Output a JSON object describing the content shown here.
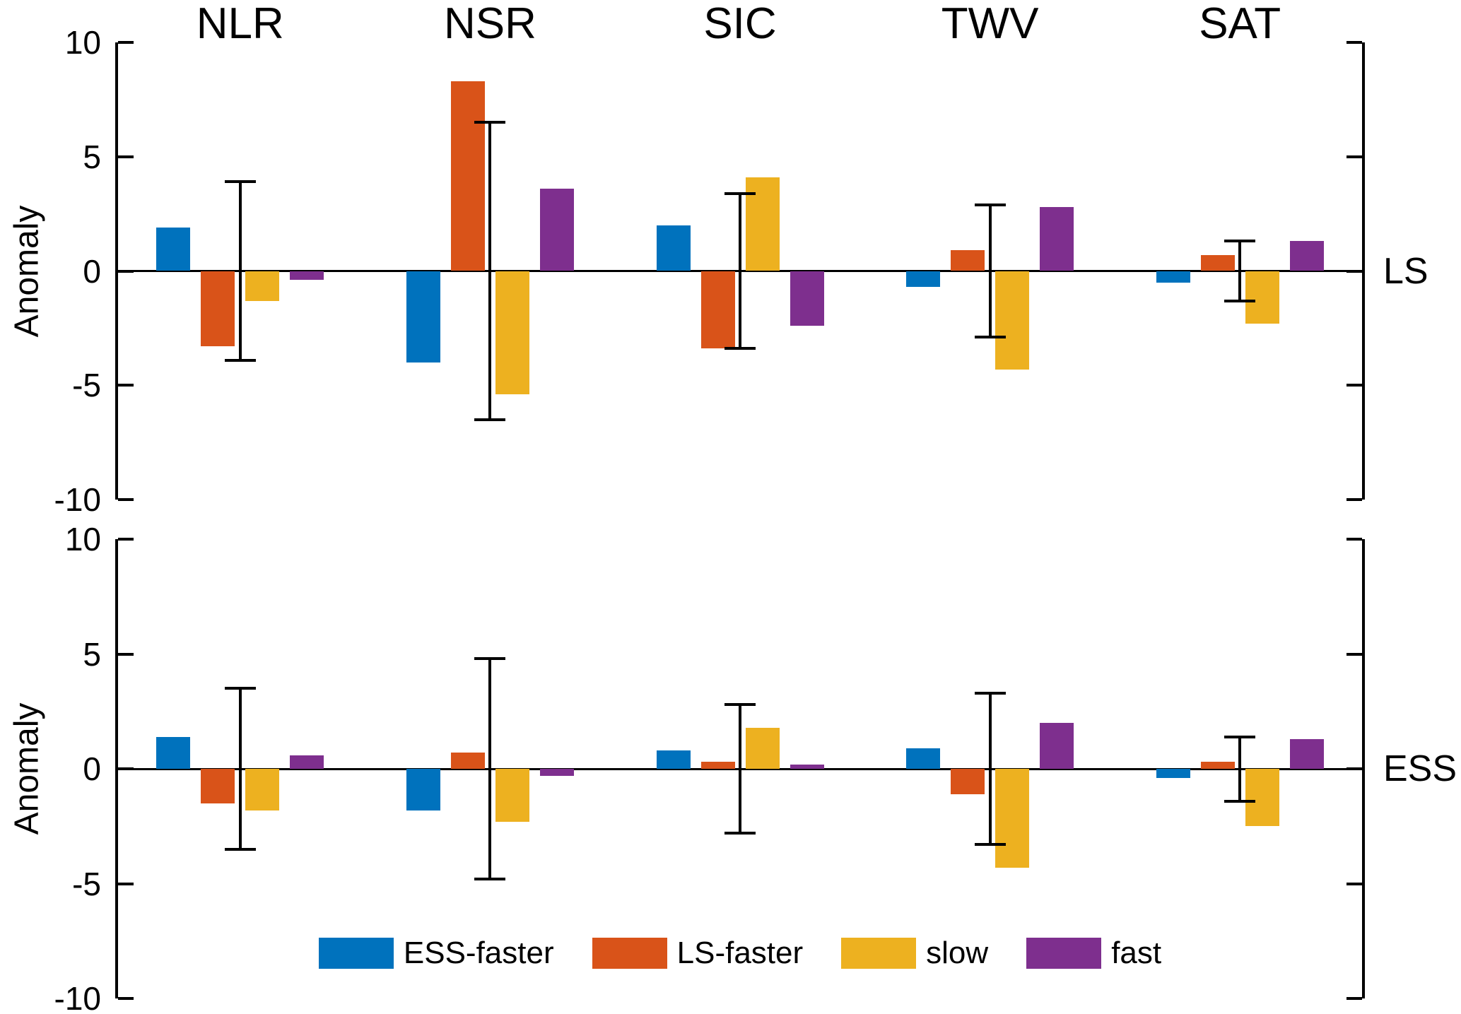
{
  "figure": {
    "background": "#ffffff"
  },
  "legend": {
    "entries": [
      {
        "label": "ESS-faster",
        "color": "#0072BD"
      },
      {
        "label": "LS-faster",
        "color": "#D95319"
      },
      {
        "label": "slow",
        "color": "#EDB120"
      },
      {
        "label": "fast",
        "color": "#7E2F8E"
      }
    ]
  },
  "chart_data": [
    {
      "type": "bar",
      "panel_label": "LS",
      "ylabel": "Anomaly",
      "ylim": [
        -10,
        10
      ],
      "yticks": [
        10,
        5,
        0,
        -5,
        -10
      ],
      "grid": false,
      "legend_position": "none",
      "show_category_titles": true,
      "categories": [
        "NLR",
        "NSR",
        "SIC",
        "TWV",
        "SAT"
      ],
      "series": [
        {
          "name": "ESS-faster",
          "color": "#0072BD",
          "values": [
            1.9,
            -4.0,
            2.0,
            -0.7,
            -0.5
          ]
        },
        {
          "name": "LS-faster",
          "color": "#D95319",
          "values": [
            -3.3,
            8.3,
            -3.4,
            0.9,
            0.7
          ]
        },
        {
          "name": "slow",
          "color": "#EDB120",
          "values": [
            -1.3,
            -5.4,
            4.1,
            -4.3,
            -2.3
          ]
        },
        {
          "name": "fast",
          "color": "#7E2F8E",
          "values": [
            -0.4,
            3.6,
            -2.4,
            2.8,
            1.3
          ]
        }
      ],
      "error_bars": {
        "center": 0,
        "half_widths": [
          3.9,
          6.5,
          3.4,
          2.9,
          1.3
        ]
      }
    },
    {
      "type": "bar",
      "panel_label": "ESS",
      "ylabel": "Anomaly",
      "ylim": [
        -10,
        10
      ],
      "yticks": [
        10,
        5,
        0,
        -5,
        -10
      ],
      "grid": false,
      "legend_position": "bottom-center-inside",
      "show_category_titles": false,
      "categories": [
        "NLR",
        "NSR",
        "SIC",
        "TWV",
        "SAT"
      ],
      "series": [
        {
          "name": "ESS-faster",
          "color": "#0072BD",
          "values": [
            1.4,
            -1.8,
            0.8,
            0.9,
            -0.4
          ]
        },
        {
          "name": "LS-faster",
          "color": "#D95319",
          "values": [
            -1.5,
            0.7,
            0.3,
            -1.1,
            0.3
          ]
        },
        {
          "name": "slow",
          "color": "#EDB120",
          "values": [
            -1.8,
            -2.3,
            1.8,
            -4.3,
            -2.5
          ]
        },
        {
          "name": "fast",
          "color": "#7E2F8E",
          "values": [
            0.6,
            -0.3,
            0.2,
            2.0,
            1.3
          ]
        }
      ],
      "error_bars": {
        "center": 0,
        "half_widths": [
          3.5,
          4.8,
          2.8,
          3.3,
          1.4
        ]
      }
    }
  ]
}
